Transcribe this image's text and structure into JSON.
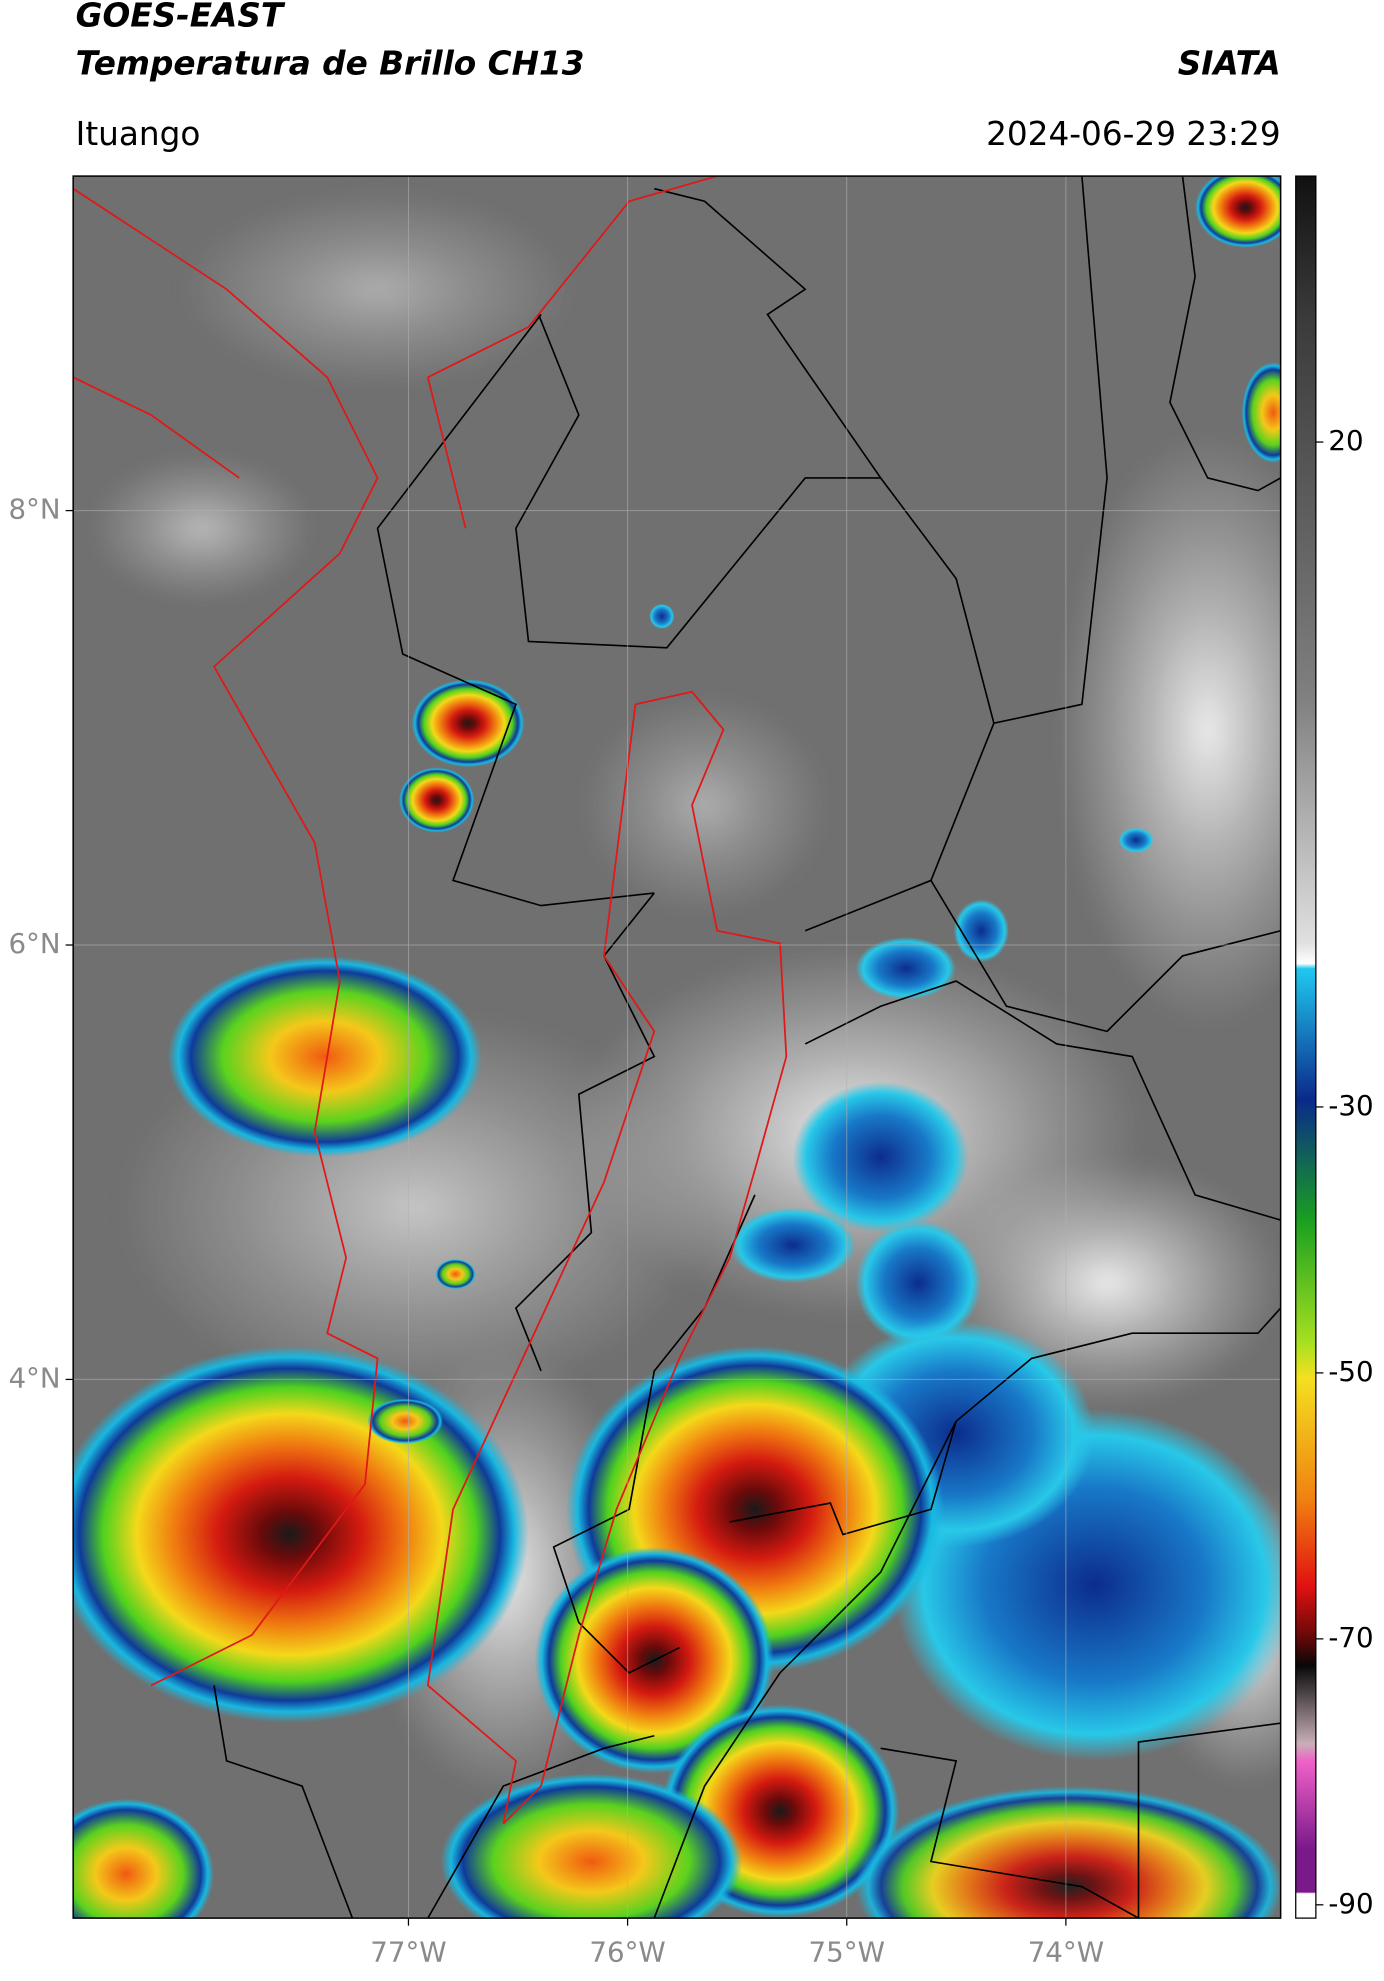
{
  "header": {
    "satellite": "GOES-EAST",
    "product": "Temperatura de Brillo CH13",
    "agency": "SIATA",
    "region": "Ituango",
    "datetime": "2024-06-29 23:29"
  },
  "map": {
    "xlim": [
      -78.53,
      -73.02
    ],
    "ylim": [
      1.52,
      9.54
    ],
    "xticks": [
      {
        "value": -77,
        "label": "77°W"
      },
      {
        "value": -76,
        "label": "76°W"
      },
      {
        "value": -75,
        "label": "75°W"
      },
      {
        "value": -74,
        "label": "74°W"
      }
    ],
    "yticks": [
      {
        "value": 8,
        "label": "8°N"
      },
      {
        "value": 6,
        "label": "6°N"
      },
      {
        "value": 4,
        "label": "4°N"
      }
    ],
    "grid": true
  },
  "colorbar": {
    "lim": [
      -91,
      40
    ],
    "ticks": [
      20,
      -30,
      -50,
      -70,
      -90
    ]
  }
}
